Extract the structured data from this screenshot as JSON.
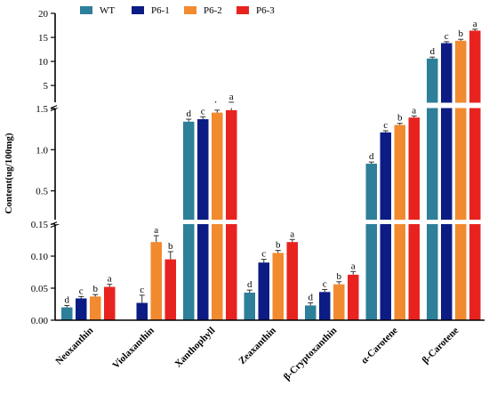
{
  "chart_data": {
    "type": "bar",
    "ylabel": "Content(ug/100mg)",
    "categories": [
      "Neoxanthin",
      "Violaxanthin",
      "Xanthophyll",
      "Zeaxanthin",
      "β-Cryptoxanthin",
      "α-Carotene",
      "β-Carotene"
    ],
    "series": [
      {
        "name": "WT",
        "color": "#2e7f99",
        "values": [
          0.02,
          0.0,
          1.34,
          0.043,
          0.023,
          0.83,
          10.6
        ],
        "errors": [
          0.003,
          0,
          0.03,
          0.004,
          0.004,
          0.02,
          0.3
        ],
        "letters": [
          "d",
          "",
          "d",
          "d",
          "d",
          "d",
          "d"
        ]
      },
      {
        "name": "P6-1",
        "color": "#0c1c84",
        "values": [
          0.034,
          0.027,
          1.37,
          0.09,
          0.044,
          1.21,
          13.8
        ],
        "errors": [
          0.003,
          0.012,
          0.03,
          0.005,
          0.004,
          0.02,
          0.3
        ],
        "letters": [
          "c",
          "c",
          "c",
          "c",
          "c",
          "c",
          "c"
        ]
      },
      {
        "name": "P6-2",
        "color": "#f28a30",
        "values": [
          0.037,
          0.122,
          1.45,
          0.105,
          0.056,
          1.3,
          14.3
        ],
        "errors": [
          0.003,
          0.01,
          0.03,
          0.004,
          0.004,
          0.02,
          0.3
        ],
        "letters": [
          "b",
          "a",
          "b",
          "b",
          "b",
          "b",
          "b"
        ]
      },
      {
        "name": "P6-3",
        "color": "#e8231f",
        "values": [
          0.052,
          0.095,
          1.48,
          0.122,
          0.071,
          1.39,
          16.4
        ],
        "errors": [
          0.004,
          0.012,
          0.03,
          0.004,
          0.005,
          0.02,
          0.3
        ],
        "letters": [
          "a",
          "b",
          "a",
          "a",
          "a",
          "a",
          "a"
        ]
      }
    ],
    "y_segments": [
      {
        "range": [
          0,
          0.15
        ],
        "ticks": [
          0.0,
          0.05,
          0.1,
          0.15
        ],
        "tick_labels": [
          "0.00",
          "0.05",
          "0.10",
          "0.15"
        ]
      },
      {
        "range": [
          0.15,
          1.5
        ],
        "ticks": [
          0.5,
          1.0,
          1.5
        ],
        "tick_labels": [
          "0.5",
          "1.0",
          "1.5"
        ]
      },
      {
        "range": [
          1.5,
          20
        ],
        "ticks": [
          5,
          10,
          15,
          20
        ],
        "tick_labels": [
          "5",
          "10",
          "15",
          "20"
        ]
      }
    ],
    "legend": "top",
    "grid": false
  }
}
